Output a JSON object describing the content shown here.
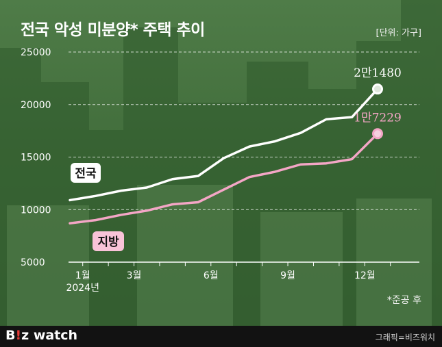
{
  "header": {
    "title": "전국 악성 미분양* 주택 추이",
    "unit": "[단위: 가구]"
  },
  "note": "*준공 후",
  "footer": {
    "logo_b": "B",
    "logo_slash": "!",
    "logo_z": "z",
    "logo_watch": " watch",
    "credit": "그래픽=비즈워치"
  },
  "colors": {
    "national": "#ffffff",
    "regional": "#f4a6c6",
    "regional_label_bg": "#f8c3d8"
  },
  "chart_data": {
    "type": "line",
    "y_ticks": [
      "25000",
      "20000",
      "15000",
      "10000",
      "5000"
    ],
    "ylim": [
      5000,
      25000
    ],
    "x_tick_labels": [
      "1월",
      "3월",
      "6월",
      "9월",
      "12월"
    ],
    "x_tick_sub": "2024년",
    "series": [
      {
        "name": "전국",
        "values": [
          10900,
          11300,
          11800,
          12100,
          12900,
          13200,
          14900,
          16000,
          16500,
          17300,
          18600,
          18800,
          21480
        ],
        "end_label": "2만1480"
      },
      {
        "name": "지방",
        "values": [
          8700,
          9000,
          9500,
          9900,
          10500,
          10700,
          11900,
          13100,
          13600,
          14300,
          14400,
          14800,
          17229
        ],
        "end_label": "1만7229"
      }
    ]
  }
}
